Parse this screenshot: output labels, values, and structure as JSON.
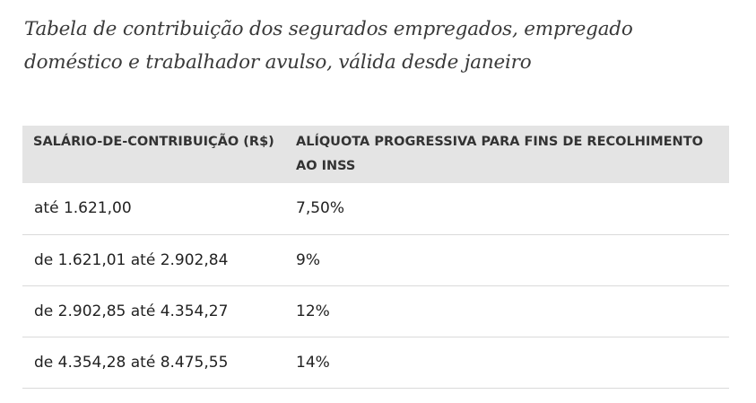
{
  "caption": "Tabela de contribuição dos segurados empregados, empregado doméstico e trabalhador avulso, válida desde janeiro",
  "table": {
    "headers": [
      "SALÁRIO-DE-CONTRIBUIÇÃO (R$)",
      "ALÍQUOTA PROGRESSIVA PARA FINS DE RECOLHIMENTO AO INSS"
    ],
    "rows": [
      [
        "até 1.621,00",
        "7,50%"
      ],
      [
        "de 1.621,01 até 2.902,84",
        "9%"
      ],
      [
        "de 2.902,85 até 4.354,27",
        "12%"
      ],
      [
        "de 4.354,28 até 8.475,55",
        "14%"
      ]
    ]
  }
}
